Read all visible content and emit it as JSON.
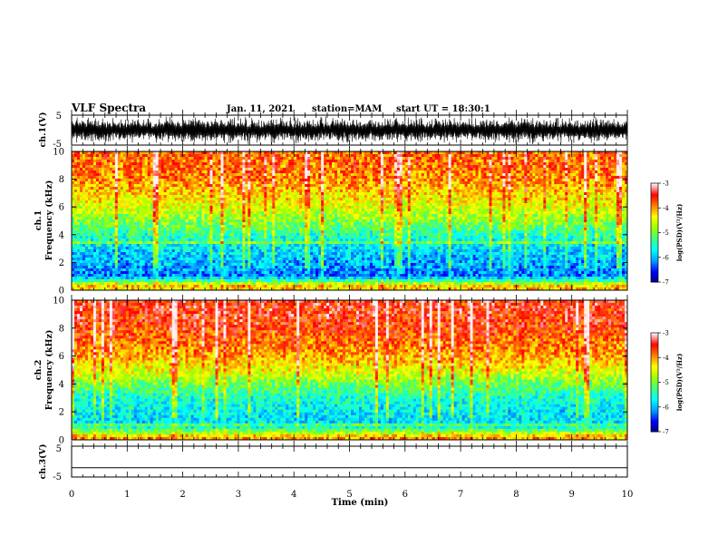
{
  "header": {
    "title": "VLF Spectra",
    "date": "Jan. 11, 2021",
    "station": "station=MAM",
    "start": "start UT = 18:30:1"
  },
  "colors": {
    "background": "#ffffff",
    "axis": "#000000",
    "waveform": "#000000",
    "colormap_jet": [
      "#000080",
      "#0000ff",
      "#00a0ff",
      "#00ffff",
      "#40ff80",
      "#a0ff00",
      "#ffff00",
      "#ff8000",
      "#ff0000",
      "#fff0f0"
    ]
  },
  "chart_data": [
    {
      "type": "line",
      "id": "ch1-waveform",
      "ylabel": "ch.1(V)",
      "ylim": [
        -5,
        5
      ],
      "yticks": [
        "5",
        "-5"
      ],
      "xlim": [
        0,
        10
      ],
      "description_series": "dense noise waveform, amplitude approx 2 to 5 V"
    },
    {
      "type": "heatmap",
      "id": "ch1-spectrogram",
      "ylabel": "ch.1 Frequency (kHz)",
      "ylim": [
        0,
        10
      ],
      "yticks": [
        "0",
        "2",
        "4",
        "6",
        "8",
        "10"
      ],
      "xlim": [
        0,
        10
      ],
      "colorbar": {
        "label": "log(PSD)(V²/Hz)",
        "range": [
          -7,
          -3
        ],
        "ticks": [
          "-3",
          "-4",
          "-5",
          "-6",
          "-7"
        ]
      },
      "profile": [
        {
          "freq_khz": 0.3,
          "log_psd": -4.2
        },
        {
          "freq_khz": 1.0,
          "log_psd": -6.2
        },
        {
          "freq_khz": 2.0,
          "log_psd": -6.0
        },
        {
          "freq_khz": 3.0,
          "log_psd": -5.8
        },
        {
          "freq_khz": 4.0,
          "log_psd": -5.4
        },
        {
          "freq_khz": 5.0,
          "log_psd": -4.9
        },
        {
          "freq_khz": 6.0,
          "log_psd": -4.5
        },
        {
          "freq_khz": 7.0,
          "log_psd": -4.2
        },
        {
          "freq_khz": 8.0,
          "log_psd": -3.9
        },
        {
          "freq_khz": 9.0,
          "log_psd": -3.8
        },
        {
          "freq_khz": 10.0,
          "log_psd": -3.8
        }
      ]
    },
    {
      "type": "heatmap",
      "id": "ch2-spectrogram",
      "ylabel": "ch.2 Frequency (kHz)",
      "ylim": [
        0,
        10
      ],
      "yticks": [
        "0",
        "2",
        "4",
        "6",
        "8",
        "10"
      ],
      "xlim": [
        0,
        10
      ],
      "colorbar": {
        "label": "log(PSD)(V²/Hz)",
        "range": [
          -7,
          -3
        ],
        "ticks": [
          "-3",
          "-4",
          "-5",
          "-6",
          "-7"
        ]
      },
      "profile": [
        {
          "freq_khz": 0.2,
          "log_psd": -4.0
        },
        {
          "freq_khz": 1.0,
          "log_psd": -5.8
        },
        {
          "freq_khz": 2.0,
          "log_psd": -5.7
        },
        {
          "freq_khz": 3.0,
          "log_psd": -5.5
        },
        {
          "freq_khz": 4.0,
          "log_psd": -5.0
        },
        {
          "freq_khz": 5.0,
          "log_psd": -4.4
        },
        {
          "freq_khz": 6.0,
          "log_psd": -4.0
        },
        {
          "freq_khz": 7.0,
          "log_psd": -3.8
        },
        {
          "freq_khz": 8.0,
          "log_psd": -3.6
        },
        {
          "freq_khz": 9.0,
          "log_psd": -3.5
        },
        {
          "freq_khz": 10.0,
          "log_psd": -3.5
        }
      ]
    },
    {
      "type": "line",
      "id": "ch3-waveform",
      "ylabel": "ch.3(V)",
      "ylim": [
        -5,
        5
      ],
      "yticks": [
        "5",
        "-5"
      ],
      "xlim": [
        0,
        10
      ],
      "series": [
        {
          "x": [
            0,
            10
          ],
          "y": [
            -2,
            -2
          ]
        }
      ]
    }
  ],
  "xaxis": {
    "label": "Time (min)",
    "range": [
      0,
      10
    ],
    "ticks": [
      "0",
      "1",
      "2",
      "3",
      "4",
      "5",
      "6",
      "7",
      "8",
      "9",
      "10"
    ]
  }
}
